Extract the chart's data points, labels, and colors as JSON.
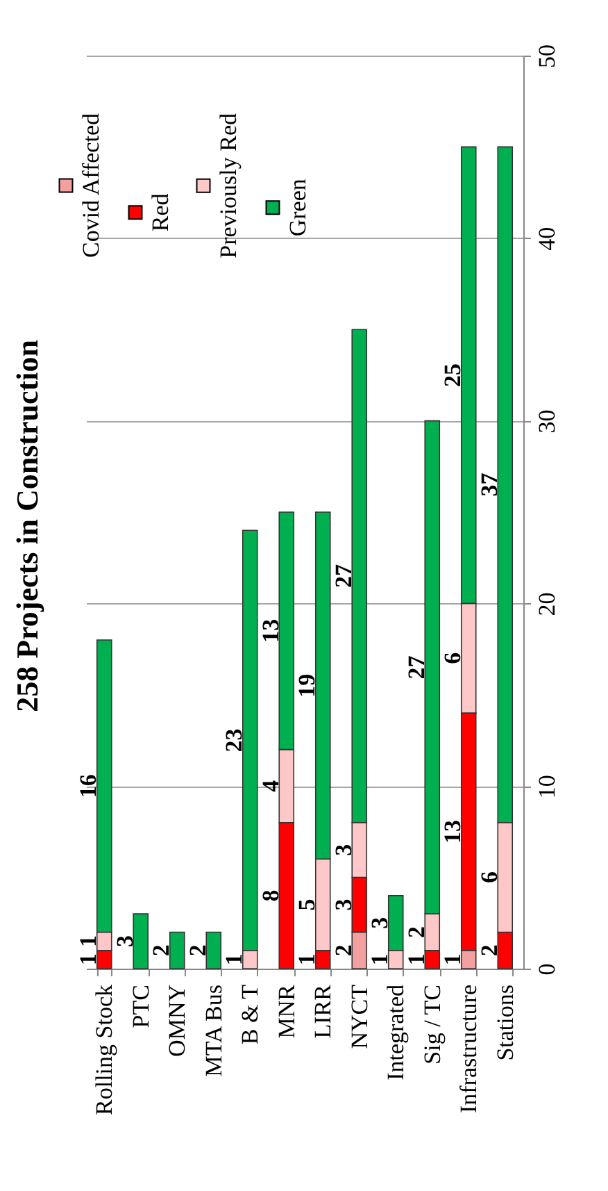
{
  "chart_data": {
    "type": "bar",
    "title": "258 Projects in Construction",
    "stacked": true,
    "categories": [
      "Rolling Stock",
      "PTC",
      "OMNY",
      "MTA Bus",
      "B & T",
      "MNR",
      "LIRR",
      "NYCT",
      "Integrated",
      "Sig / TC",
      "Infrastructure",
      "Stations"
    ],
    "series": [
      {
        "name": "Covid Affected",
        "color": "#f4a0a0",
        "values": [
          null,
          null,
          null,
          null,
          null,
          null,
          null,
          2,
          null,
          null,
          1,
          null
        ]
      },
      {
        "name": "Red",
        "color": "#ff0000",
        "values": [
          1,
          null,
          null,
          null,
          null,
          8,
          1,
          3,
          null,
          1,
          13,
          2
        ]
      },
      {
        "name": "Previously Red",
        "color": "#ffc8c8",
        "values": [
          1,
          null,
          null,
          null,
          1,
          4,
          5,
          3,
          1,
          2,
          6,
          6
        ]
      },
      {
        "name": "Green",
        "color": "#00b050",
        "values": [
          16,
          3,
          2,
          2,
          23,
          13,
          19,
          27,
          3,
          27,
          25,
          37
        ]
      }
    ],
    "ylim": [
      0,
      50
    ],
    "yticks": [
      0,
      10,
      20,
      30,
      40,
      50
    ],
    "grid": "y",
    "legend": "top left",
    "data_labels": true
  }
}
